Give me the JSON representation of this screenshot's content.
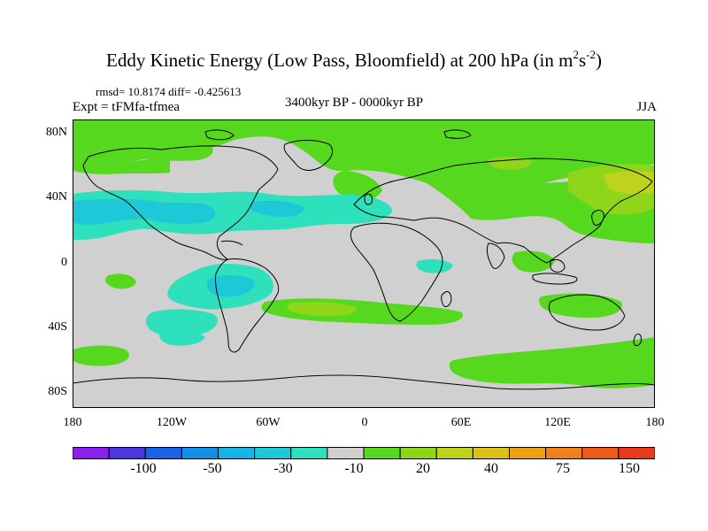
{
  "title": {
    "main": "Eddy Kinetic Energy (Low Pass, Bloomfield) at 200 hPa (in m",
    "sup1": "2",
    "mid": "s",
    "sup2": "-2",
    "close": ")"
  },
  "stats": "rmsd= 10.8174 diff= -0.425613",
  "expt": "Expt = tFMfa-tfmea",
  "period": "3400kyr BP - 0000kyr BP",
  "season": "JJA",
  "lat_labels": [
    "80N",
    "40N",
    "0",
    "40S",
    "80S"
  ],
  "lon_labels": [
    "180",
    "120W",
    "60W",
    "0",
    "60E",
    "120E",
    "180"
  ],
  "colorbar": {
    "colors": [
      "#8b1ff0",
      "#4a35e0",
      "#1b63e6",
      "#0f8fe8",
      "#18b3e6",
      "#1ec8d6",
      "#2ee0bb",
      "#d0d0d0",
      "#56d81e",
      "#8fd61a",
      "#bfd21c",
      "#dcbf18",
      "#f0a018",
      "#f08018",
      "#ef5a17",
      "#e8391a"
    ],
    "labels": [
      "-100",
      "-50",
      "-30",
      "-10",
      "20",
      "40",
      "75",
      "150"
    ]
  },
  "legend_levels": {
    "negative": [
      "-100",
      "-50",
      "-30",
      "-10"
    ],
    "positive": [
      "20",
      "40",
      "75",
      "150"
    ]
  },
  "field_colors": {
    "background": "#d0d0d0",
    "cyan": "#1ec8d6",
    "teal": "#2ee0bb",
    "green": "#56d81e",
    "lime": "#8fd61a",
    "yellow": "#bfd21c"
  }
}
